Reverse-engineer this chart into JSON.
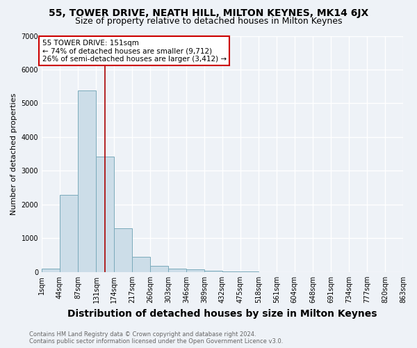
{
  "title": "55, TOWER DRIVE, NEATH HILL, MILTON KEYNES, MK14 6JX",
  "subtitle": "Size of property relative to detached houses in Milton Keynes",
  "xlabel": "Distribution of detached houses by size in Milton Keynes",
  "ylabel": "Number of detached properties",
  "bin_edges": [
    1,
    44,
    87,
    131,
    174,
    217,
    260,
    303,
    346,
    389,
    432,
    475,
    518,
    561,
    604,
    648,
    691,
    734,
    777,
    820,
    863
  ],
  "bar_heights": [
    100,
    2280,
    5380,
    3430,
    1300,
    460,
    190,
    100,
    70,
    40,
    15,
    8,
    5,
    3,
    2,
    2,
    1,
    1,
    1,
    1
  ],
  "bar_color": "#ccdde8",
  "bar_edge_color": "#7aaabb",
  "vline_x": 151,
  "vline_color": "#aa0000",
  "ylim": [
    0,
    7000
  ],
  "annotation_title": "55 TOWER DRIVE: 151sqm",
  "annotation_line1": "← 74% of detached houses are smaller (9,712)",
  "annotation_line2": "26% of semi-detached houses are larger (3,412) →",
  "annotation_box_color": "#ffffff",
  "annotation_border_color": "#cc0000",
  "footer_line1": "Contains HM Land Registry data © Crown copyright and database right 2024.",
  "footer_line2": "Contains public sector information licensed under the Open Government Licence v3.0.",
  "tick_labels": [
    "1sqm",
    "44sqm",
    "87sqm",
    "131sqm",
    "174sqm",
    "217sqm",
    "260sqm",
    "303sqm",
    "346sqm",
    "389sqm",
    "432sqm",
    "475sqm",
    "518sqm",
    "561sqm",
    "604sqm",
    "648sqm",
    "691sqm",
    "734sqm",
    "777sqm",
    "820sqm",
    "863sqm"
  ],
  "background_color": "#eef2f7",
  "grid_color": "#ffffff",
  "title_fontsize": 10,
  "subtitle_fontsize": 9,
  "xlabel_fontsize": 10,
  "ylabel_fontsize": 8,
  "tick_fontsize": 7,
  "footer_fontsize": 6,
  "ann_fontsize": 7.5
}
